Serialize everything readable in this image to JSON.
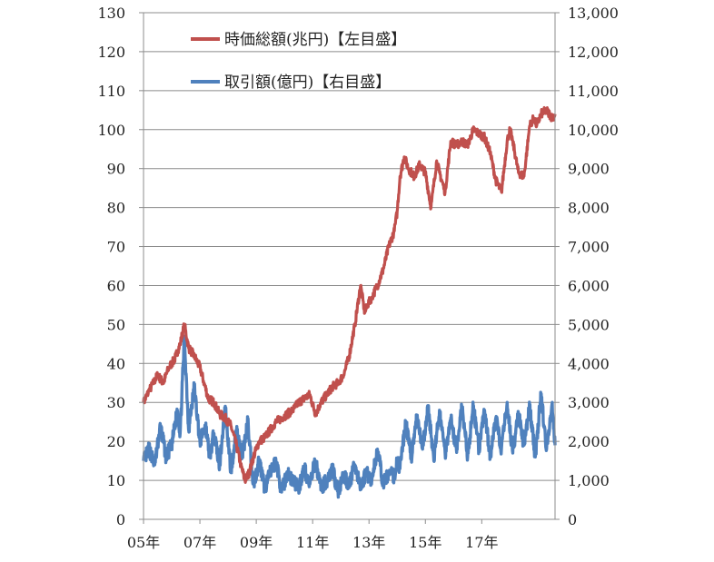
{
  "chart_data": {
    "type": "line",
    "title": "",
    "xlabel": "",
    "ylabel": "",
    "x_ticks": [
      "05年",
      "07年",
      "09年",
      "11年",
      "13年",
      "15年",
      "17年"
    ],
    "x_range": [
      2005.0,
      2019.6
    ],
    "y_left": {
      "ticks": [
        "0",
        "10",
        "20",
        "30",
        "40",
        "50",
        "60",
        "70",
        "80",
        "90",
        "100",
        "110",
        "120",
        "130"
      ],
      "range": [
        0,
        130
      ]
    },
    "y_right": {
      "ticks": [
        "0",
        "1,000",
        "2,000",
        "3,000",
        "4,000",
        "5,000",
        "6,000",
        "7,000",
        "8,000",
        "9,000",
        "10,000",
        "11,000",
        "12,000",
        "13,000"
      ],
      "range": [
        0,
        13000
      ]
    },
    "grid": "horizontal",
    "legend_position": "top-left",
    "series": [
      {
        "name": "時価総額(兆円)【左目盛】",
        "axis": "left",
        "color": "#c0504d",
        "x": [
          2005.0,
          2005.2,
          2005.5,
          2005.7,
          2005.9,
          2006.1,
          2006.3,
          2006.45,
          2006.6,
          2006.8,
          2007.0,
          2007.15,
          2007.3,
          2007.5,
          2007.7,
          2007.9,
          2008.1,
          2008.3,
          2008.45,
          2008.6,
          2008.75,
          2008.9,
          2009.1,
          2009.3,
          2009.5,
          2009.7,
          2009.9,
          2010.1,
          2010.3,
          2010.5,
          2010.7,
          2010.9,
          2011.1,
          2011.3,
          2011.5,
          2011.7,
          2011.9,
          2012.1,
          2012.3,
          2012.5,
          2012.7,
          2012.85,
          2012.95,
          2013.1,
          2013.3,
          2013.5,
          2013.7,
          2013.9,
          2014.0,
          2014.1,
          2014.25,
          2014.4,
          2014.6,
          2014.8,
          2015.0,
          2015.2,
          2015.4,
          2015.5,
          2015.7,
          2015.9,
          2016.1,
          2016.3,
          2016.5,
          2016.7,
          2016.9,
          2017.1,
          2017.3,
          2017.5,
          2017.7,
          2017.9,
          2018.0,
          2018.1,
          2018.3,
          2018.5,
          2018.7,
          2018.85,
          2018.95,
          2019.1,
          2019.3,
          2019.5,
          2019.6
        ],
        "values": [
          30,
          33,
          37,
          35,
          39,
          41,
          45,
          50,
          44,
          42,
          39,
          35,
          31,
          30,
          27,
          26,
          24,
          19,
          14,
          10,
          12,
          16,
          20,
          21,
          23,
          25,
          26,
          27,
          28,
          30,
          31,
          32,
          27,
          30,
          32,
          34,
          35,
          37,
          42,
          50,
          60,
          53,
          55,
          57,
          60,
          64,
          70,
          74,
          79,
          88,
          93,
          90,
          88,
          91,
          89,
          80,
          92,
          89,
          84,
          97,
          96,
          97,
          96,
          100,
          99,
          98,
          94,
          87,
          84,
          97,
          100,
          97,
          89,
          88,
          101,
          103,
          101,
          104,
          105,
          103,
          104
        ]
      },
      {
        "name": "取引額(億円)【右目盛】",
        "axis": "right",
        "color": "#4f81bd",
        "x": [
          2005.0,
          2005.2,
          2005.4,
          2005.6,
          2005.8,
          2006.0,
          2006.2,
          2006.3,
          2006.45,
          2006.6,
          2006.8,
          2007.0,
          2007.2,
          2007.35,
          2007.5,
          2007.7,
          2007.9,
          2008.1,
          2008.3,
          2008.5,
          2008.7,
          2008.9,
          2009.1,
          2009.3,
          2009.5,
          2009.7,
          2009.9,
          2010.1,
          2010.3,
          2010.5,
          2010.7,
          2010.9,
          2011.1,
          2011.3,
          2011.5,
          2011.7,
          2011.9,
          2012.1,
          2012.3,
          2012.5,
          2012.7,
          2012.9,
          2013.1,
          2013.3,
          2013.5,
          2013.7,
          2013.9,
          2014.0,
          2014.1,
          2014.3,
          2014.5,
          2014.7,
          2014.9,
          2015.1,
          2015.3,
          2015.5,
          2015.7,
          2015.9,
          2016.1,
          2016.3,
          2016.5,
          2016.7,
          2016.9,
          2017.1,
          2017.3,
          2017.5,
          2017.7,
          2017.9,
          2018.1,
          2018.3,
          2018.5,
          2018.7,
          2018.9,
          2019.1,
          2019.3,
          2019.5,
          2019.6
        ],
        "values": [
          1500,
          1800,
          1400,
          2400,
          1600,
          1900,
          2800,
          2200,
          4700,
          2300,
          3400,
          2000,
          2400,
          1600,
          2200,
          1400,
          2900,
          1200,
          2300,
          1600,
          2500,
          900,
          1500,
          800,
          1200,
          1500,
          700,
          1200,
          1000,
          800,
          1300,
          900,
          1500,
          800,
          1000,
          1300,
          700,
          1100,
          900,
          1400,
          800,
          1200,
          1000,
          1800,
          900,
          1200,
          1100,
          1500,
          1300,
          2500,
          1600,
          2600,
          1800,
          2900,
          1500,
          2800,
          1700,
          2600,
          1800,
          2900,
          1600,
          2900,
          1800,
          2800,
          1600,
          2600,
          1800,
          3000,
          1700,
          2700,
          1900,
          2900,
          1600,
          3200,
          1800,
          3000,
          1900
        ]
      }
    ]
  }
}
